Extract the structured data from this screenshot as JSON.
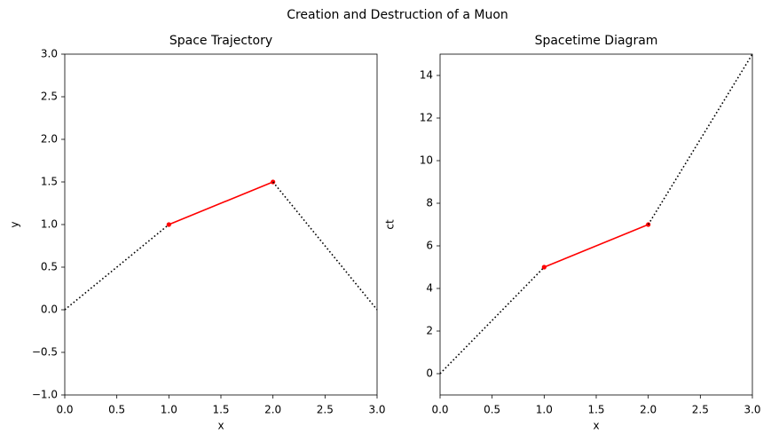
{
  "title": "Creation and Destruction of a Muon",
  "chart_data": [
    {
      "type": "line",
      "title": "Space Trajectory",
      "x_label": "x",
      "y_label": "y",
      "xlim": [
        0,
        3
      ],
      "ylim": [
        -1,
        3
      ],
      "xticks": [
        {
          "value": 0,
          "label": "0.0"
        },
        {
          "value": 0.5,
          "label": "0.5"
        },
        {
          "value": 1,
          "label": "1.0"
        },
        {
          "value": 1.5,
          "label": "1.5"
        },
        {
          "value": 2,
          "label": "2.0"
        },
        {
          "value": 2.5,
          "label": "2.5"
        },
        {
          "value": 3,
          "label": "3.0"
        }
      ],
      "yticks": [
        {
          "value": -1,
          "label": "−1.0"
        },
        {
          "value": -0.5,
          "label": "−0.5"
        },
        {
          "value": 0,
          "label": "0.0"
        },
        {
          "value": 0.5,
          "label": "0.5"
        },
        {
          "value": 1,
          "label": "1.0"
        },
        {
          "value": 1.5,
          "label": "1.5"
        },
        {
          "value": 2,
          "label": "2.0"
        },
        {
          "value": 2.5,
          "label": "2.5"
        },
        {
          "value": 3,
          "label": "3.0"
        }
      ],
      "series": [
        {
          "color": "#000000",
          "linestyle": "dotted",
          "marker": false,
          "x": [
            0,
            1
          ],
          "values": [
            0,
            1
          ]
        },
        {
          "color": "#ff0000",
          "linestyle": "solid",
          "marker": true,
          "x": [
            1,
            2
          ],
          "values": [
            1,
            1.5
          ]
        },
        {
          "color": "#000000",
          "linestyle": "dotted",
          "marker": false,
          "x": [
            2,
            3
          ],
          "values": [
            1.5,
            0
          ]
        }
      ]
    },
    {
      "type": "line",
      "title": "Spacetime Diagram",
      "x_label": "x",
      "y_label": "ct",
      "xlim": [
        0,
        3
      ],
      "ylim": [
        -1,
        15
      ],
      "xticks": [
        {
          "value": 0,
          "label": "0.0"
        },
        {
          "value": 0.5,
          "label": "0.5"
        },
        {
          "value": 1,
          "label": "1.0"
        },
        {
          "value": 1.5,
          "label": "1.5"
        },
        {
          "value": 2,
          "label": "2.0"
        },
        {
          "value": 2.5,
          "label": "2.5"
        },
        {
          "value": 3,
          "label": "3.0"
        }
      ],
      "yticks": [
        0,
        2,
        4,
        6,
        8,
        10,
        12,
        14
      ],
      "series": [
        {
          "color": "#000000",
          "linestyle": "dotted",
          "marker": false,
          "x": [
            0,
            1
          ],
          "values": [
            0,
            5
          ]
        },
        {
          "color": "#ff0000",
          "linestyle": "solid",
          "marker": true,
          "x": [
            1,
            2
          ],
          "values": [
            5,
            7
          ]
        },
        {
          "color": "#000000",
          "linestyle": "dotted",
          "marker": false,
          "x": [
            2,
            3
          ],
          "values": [
            7,
            15
          ]
        }
      ]
    }
  ]
}
